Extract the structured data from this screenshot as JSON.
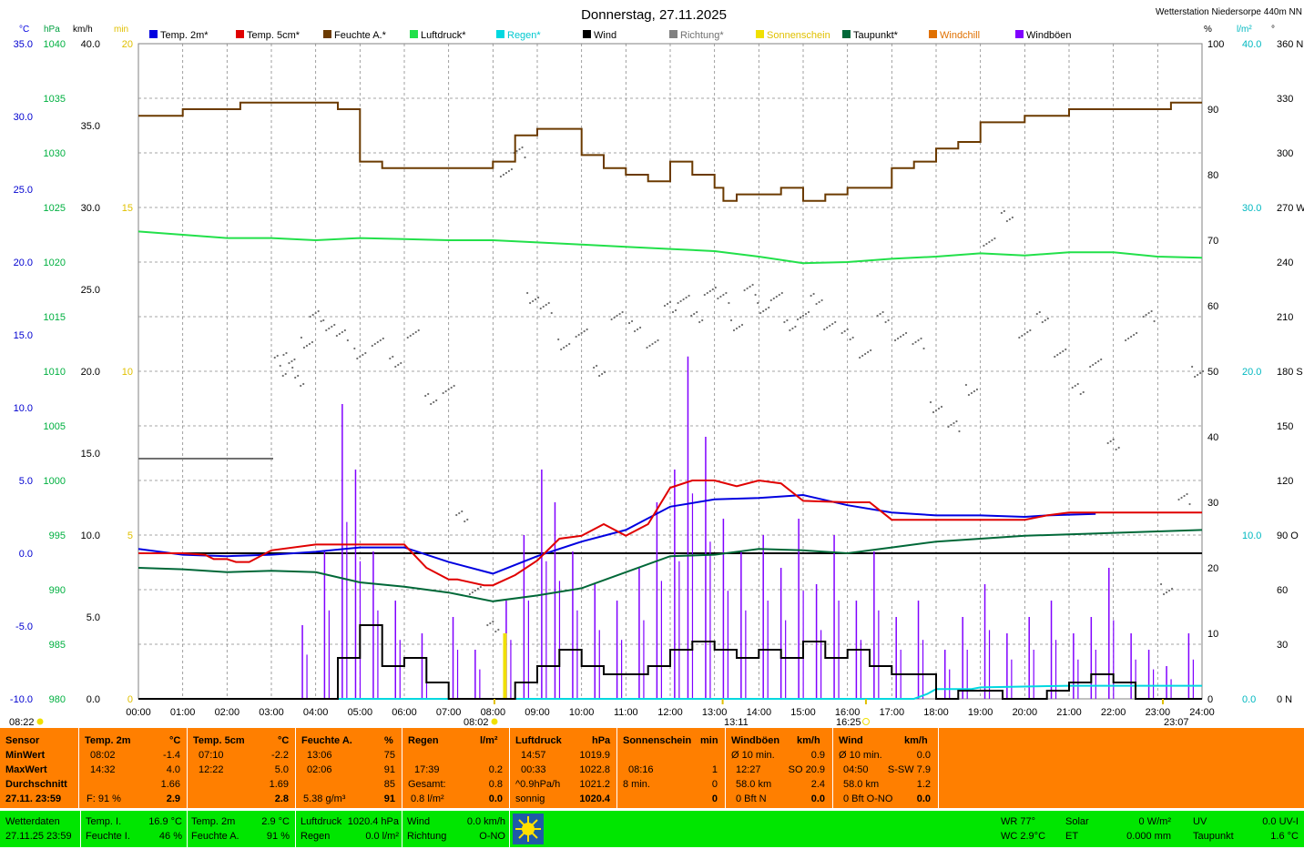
{
  "header": {
    "title": "Donnerstag, 27.11.2025",
    "station": "Wetterstation Niedersorpe 440m NN"
  },
  "axis_units": {
    "c": "°C",
    "hpa": "hPa",
    "kmh": "km/h",
    "min": "min",
    "pct": "%",
    "lm2": "l/m²",
    "deg": "°"
  },
  "legend": [
    {
      "label": "Temp. 2m*",
      "color": "#0000e0"
    },
    {
      "label": "Temp. 5cm*",
      "color": "#e00000"
    },
    {
      "label": "Feuchte A.*",
      "color": "#6b3a00"
    },
    {
      "label": "Luftdruck*",
      "color": "#22e04a"
    },
    {
      "label": "Regen*",
      "color": "#00d8e0"
    },
    {
      "label": "Wind",
      "color": "#000000"
    },
    {
      "label": "Richtung*",
      "color": "#808080"
    },
    {
      "label": "Sonnenschein",
      "color": "#f0e000"
    },
    {
      "label": "Taupunkt*",
      "color": "#006838"
    },
    {
      "label": "Windchill",
      "color": "#e07000"
    },
    {
      "label": "Windböen",
      "color": "#8000ff"
    }
  ],
  "chart_data": {
    "type": "line",
    "x": [
      "00:00",
      "01:00",
      "02:00",
      "03:00",
      "04:00",
      "05:00",
      "06:00",
      "07:00",
      "08:00",
      "09:00",
      "10:00",
      "11:00",
      "12:00",
      "13:00",
      "14:00",
      "15:00",
      "16:00",
      "17:00",
      "18:00",
      "19:00",
      "20:00",
      "21:00",
      "22:00",
      "23:00",
      "24:00"
    ],
    "axes": {
      "temp_c": {
        "ticks": [
          "35.0",
          "30.0",
          "25.0",
          "20.0",
          "15.0",
          "10.0",
          "5.0",
          "0.0",
          "-5.0",
          "-10.0"
        ],
        "range": [
          -10,
          35
        ]
      },
      "pressure_hpa": {
        "ticks": [
          "1040",
          "1035",
          "1030",
          "1025",
          "1020",
          "1015",
          "1010",
          "1005",
          "1000",
          "995",
          "990",
          "985",
          "980"
        ],
        "range": [
          980,
          1040
        ]
      },
      "wind_kmh": {
        "ticks": [
          "40.0",
          "35.0",
          "30.0",
          "25.0",
          "20.0",
          "15.0",
          "10.0",
          "5.0",
          "0.0"
        ],
        "range": [
          0,
          40
        ]
      },
      "sun_min": {
        "ticks": [
          "20",
          "15",
          "10",
          "5",
          "0"
        ],
        "range": [
          0,
          20
        ]
      },
      "humidity_pct": {
        "ticks": [
          "100",
          "90",
          "80",
          "70",
          "60",
          "50",
          "40",
          "30",
          "20",
          "10",
          "0"
        ],
        "range": [
          0,
          100
        ]
      },
      "rain_lm2": {
        "ticks": [
          "40.0",
          "30.0",
          "20.0",
          "10.0",
          "0.0"
        ],
        "range": [
          0,
          40
        ]
      },
      "direction_deg": {
        "ticks": [
          "360 N",
          "330",
          "300",
          "270 W",
          "240",
          "210",
          "180 S",
          "150",
          "120",
          "90 O",
          "60",
          "30",
          "0 N"
        ],
        "range": [
          0,
          360
        ]
      }
    },
    "series": [
      {
        "name": "Temp. 2m*",
        "axis": "temp_c",
        "color": "#0000e0",
        "x": [
          0,
          1,
          2,
          3,
          4,
          5,
          6,
          7,
          8,
          9,
          10,
          11,
          12,
          13,
          14,
          15,
          16,
          17,
          18,
          19,
          20,
          20.5,
          21.6
        ],
        "values": [
          0.3,
          -0.1,
          -0.2,
          -0.1,
          0.1,
          0.4,
          0.4,
          -0.6,
          -1.4,
          -0.2,
          0.8,
          1.6,
          3.2,
          3.7,
          3.8,
          4.0,
          3.3,
          2.8,
          2.6,
          2.6,
          2.5,
          2.6,
          2.7
        ]
      },
      {
        "name": "Temp. 5cm*",
        "axis": "temp_c",
        "color": "#e00000",
        "x": [
          0,
          1,
          1.5,
          1.7,
          2,
          2.2,
          2.5,
          3,
          4,
          5,
          6,
          6.5,
          7,
          7.2,
          7.8,
          8,
          8.5,
          9,
          9.5,
          10,
          10.5,
          11,
          11.5,
          12,
          12.5,
          13,
          13.5,
          14,
          14.5,
          15,
          16,
          16.5,
          17,
          18,
          19,
          20,
          20.5,
          21,
          22,
          24
        ],
        "values": [
          0.0,
          0.0,
          -0.1,
          -0.4,
          -0.4,
          -0.6,
          -0.6,
          0.2,
          0.6,
          0.6,
          0.6,
          -1.0,
          -1.8,
          -1.8,
          -2.2,
          -2.2,
          -1.5,
          -0.5,
          1.0,
          1.2,
          2.0,
          1.2,
          2.0,
          4.5,
          5.0,
          5.0,
          4.6,
          5.0,
          4.8,
          3.6,
          3.5,
          3.5,
          2.3,
          2.3,
          2.3,
          2.3,
          2.6,
          2.8,
          2.8,
          2.8
        ]
      },
      {
        "name": "Feuchte A.*",
        "axis": "humidity_pct",
        "color": "#6b3a00",
        "x": [
          0,
          0.5,
          1,
          2,
          2.3,
          3,
          4,
          4.5,
          5,
          5.5,
          6,
          6.5,
          7,
          7.5,
          8,
          8.5,
          9,
          9.5,
          10,
          10.5,
          11,
          11.5,
          12,
          12.5,
          13,
          13.2,
          13.5,
          14,
          14.5,
          15,
          15.5,
          16,
          16.5,
          17,
          17.5,
          18,
          18.5,
          19,
          20,
          20.5,
          21,
          22,
          23,
          23.3,
          24
        ],
        "values": [
          89,
          89,
          90,
          90,
          91,
          91,
          91,
          90,
          82,
          81,
          81,
          81,
          81,
          81,
          82,
          86,
          87,
          87,
          83,
          81,
          80,
          79,
          82,
          80,
          78,
          76,
          77,
          77,
          78,
          76,
          77,
          78,
          78,
          81,
          82,
          84,
          85,
          88,
          89,
          89,
          90,
          90,
          90,
          91,
          91
        ]
      },
      {
        "name": "Luftdruck*",
        "axis": "pressure_hpa",
        "color": "#22e04a",
        "x": [
          0,
          1,
          2,
          3,
          4,
          5,
          6,
          7,
          8,
          9,
          10,
          11,
          12,
          13,
          14,
          15,
          16,
          17,
          18,
          19,
          20,
          21,
          22,
          23,
          24
        ],
        "values": [
          1022.8,
          1022.5,
          1022.2,
          1022.2,
          1022.0,
          1022.2,
          1022.1,
          1022.0,
          1022.0,
          1021.8,
          1021.6,
          1021.4,
          1021.2,
          1021.0,
          1020.5,
          1019.9,
          1020.0,
          1020.3,
          1020.5,
          1020.8,
          1020.6,
          1020.9,
          1020.9,
          1020.5,
          1020.4
        ]
      },
      {
        "name": "Taupunkt*",
        "axis": "temp_c",
        "color": "#006838",
        "x": [
          0,
          1,
          2,
          3,
          4,
          5,
          6,
          7,
          8,
          9,
          10,
          11,
          12,
          13,
          14,
          15,
          16,
          17,
          18,
          19,
          20,
          21,
          22,
          23,
          24
        ],
        "values": [
          -1.0,
          -1.1,
          -1.3,
          -1.2,
          -1.3,
          -2.0,
          -2.3,
          -2.7,
          -3.3,
          -2.9,
          -2.4,
          -1.3,
          -0.2,
          -0.1,
          0.3,
          0.2,
          0.0,
          0.4,
          0.8,
          1.0,
          1.2,
          1.3,
          1.4,
          1.5,
          1.6
        ]
      },
      {
        "name": "Regen*",
        "axis": "rain_lm2",
        "color": "#00d8e0",
        "x": [
          0,
          17.5,
          17.8,
          18,
          18.8,
          19,
          21,
          22,
          23,
          24
        ],
        "values": [
          0,
          0,
          0.3,
          0.6,
          0.6,
          0.7,
          0.8,
          0.8,
          0.8,
          0.8
        ]
      },
      {
        "name": "Wind",
        "axis": "wind_kmh",
        "color": "#000000",
        "x": [
          0,
          4.0,
          4.5,
          5.0,
          5.5,
          6.0,
          6.5,
          7.0,
          7.5,
          8.0,
          8.5,
          9.0,
          9.5,
          10,
          10.5,
          11,
          11.5,
          12,
          12.5,
          13,
          13.5,
          14,
          14.5,
          15,
          15.5,
          16,
          16.5,
          17,
          17.5,
          18,
          18.5,
          19,
          19.5,
          20,
          20.5,
          21,
          21.5,
          22,
          22.5,
          23,
          24
        ],
        "values": [
          0,
          0,
          2.5,
          4.5,
          2.0,
          2.5,
          1.0,
          0,
          0,
          0,
          1.0,
          2.0,
          3.0,
          2.0,
          1.5,
          1.5,
          2.0,
          3.0,
          3.5,
          3.0,
          2.5,
          3.0,
          2.5,
          3.5,
          2.5,
          3.0,
          2.0,
          1.5,
          1.5,
          0,
          0.5,
          0.5,
          0,
          0,
          0.5,
          1.0,
          1.5,
          1.0,
          0,
          0,
          0
        ]
      }
    ],
    "windboeen_peaks": {
      "axis": "wind_kmh",
      "x": [
        3.7,
        4.2,
        4.6,
        4.9,
        5.3,
        5.8,
        6.4,
        7.1,
        7.6,
        8.3,
        8.7,
        9.1,
        9.4,
        9.8,
        10.3,
        10.8,
        11.3,
        11.7,
        12.1,
        12.4,
        12.8,
        13.2,
        13.6,
        14.1,
        14.5,
        14.9,
        15.3,
        15.7,
        16.2,
        16.6,
        17.1,
        17.6,
        18.2,
        18.6,
        19.1,
        19.6,
        20.1,
        20.6,
        21.1,
        21.5,
        21.9,
        22.4,
        22.8,
        23.2,
        23.7
      ],
      "values": [
        4.5,
        9,
        18,
        14,
        9,
        6,
        4,
        5,
        3,
        6,
        10,
        14,
        12,
        9,
        7,
        6,
        8,
        12,
        14,
        20.9,
        16,
        11,
        9,
        10,
        8,
        11,
        7,
        10,
        6,
        9,
        5,
        6,
        3,
        5,
        7,
        4,
        5,
        6,
        4,
        5,
        8,
        4,
        3,
        2,
        4
      ]
    },
    "richtung_points": {
      "axis": "direction_deg",
      "x": [
        3.2,
        3.4,
        3.6,
        3.8,
        4.0,
        4.3,
        4.6,
        5.0,
        5.4,
        5.8,
        6.2,
        6.6,
        7.0,
        7.3,
        7.6,
        8.0,
        8.3,
        8.6,
        8.9,
        9.2,
        9.6,
        10.0,
        10.4,
        10.8,
        11.2,
        11.6,
        12.0,
        12.3,
        12.6,
        12.9,
        13.2,
        13.5,
        13.8,
        14.1,
        14.4,
        14.7,
        15.0,
        15.3,
        15.6,
        16.0,
        16.4,
        16.8,
        17.2,
        17.6,
        18.0,
        18.4,
        18.8,
        19.2,
        19.6,
        20.0,
        20.4,
        20.8,
        21.2,
        21.6,
        22.0,
        22.4,
        22.8,
        23.2,
        23.6,
        23.9
      ],
      "values": [
        180,
        185,
        175,
        195,
        210,
        205,
        200,
        190,
        195,
        185,
        200,
        165,
        170,
        100,
        60,
        40,
        290,
        300,
        220,
        215,
        195,
        200,
        180,
        210,
        205,
        195,
        215,
        220,
        210,
        225,
        220,
        205,
        225,
        215,
        220,
        205,
        210,
        220,
        205,
        200,
        190,
        210,
        200,
        195,
        160,
        150,
        170,
        250,
        265,
        200,
        210,
        190,
        170,
        185,
        140,
        200,
        210,
        60,
        110,
        180
      ]
    },
    "sun_bar": {
      "axis": "sun_min",
      "x": 8.27,
      "value": 1
    },
    "sun_events": {
      "sunrise": "08:22",
      "sunrise_mark": "08:02",
      "noon": "13:11",
      "sunset": "16:25",
      "moon": "23:07"
    },
    "grid": true
  },
  "table": {
    "sensor": {
      "title": "Sensor",
      "rows": [
        "MinWert",
        "MaxWert",
        "Durchschnitt"
      ],
      "date": "27.11. 23:59"
    },
    "temp2m": {
      "title": "Temp. 2m",
      "unit": "°C",
      "min_time": "08:02",
      "min": "-1.4",
      "max_time": "14:32",
      "max": "4.0",
      "avg": "1.66",
      "extra": "F: 91 %",
      "current": "2.9"
    },
    "temp5cm": {
      "title": "Temp. 5cm",
      "unit": "°C",
      "min_time": "07:10",
      "min": "-2.2",
      "max_time": "12:22",
      "max": "5.0",
      "avg": "1.69",
      "current": "2.8"
    },
    "feuchte": {
      "title": "Feuchte A.",
      "unit": "%",
      "min_time": "13:06",
      "min": "75",
      "max_time": "02:06",
      "max": "91",
      "avg": "85",
      "extra": "5.38 g/m³",
      "current": "91"
    },
    "regen": {
      "title": "Regen",
      "unit": "l/m²",
      "row2_time": "17:39",
      "row2": "0.2",
      "gesamt_label": "Gesamt:",
      "gesamt": "0.8",
      "extra": "0.8 l/m²",
      "current": "0.0"
    },
    "luftdruck": {
      "title": "Luftdruck",
      "unit": "hPa",
      "min_time": "14:57",
      "min": "1019.9",
      "max_time": "00:33",
      "max": "1022.8",
      "avg_label": "^0.9hPa/h",
      "avg": "1021.2",
      "extra": "sonnig",
      "current": "1020.4"
    },
    "sonne": {
      "title": "Sonnenschein",
      "unit": "min",
      "max_time": "08:16",
      "max": "1",
      "avg_label": "8 min.",
      "avg": "0",
      "current": "0"
    },
    "windboeen": {
      "title": "Windböen",
      "unit": "km/h",
      "min_label": "Ø 10 min.",
      "min": "0.9",
      "max_time": "12:27",
      "max": "SO 20.9",
      "avg_label": "58.0 km",
      "avg": "2.4",
      "extra": "0 Bft N",
      "current": "0.0"
    },
    "wind": {
      "title": "Wind",
      "unit": "km/h",
      "min_label": "Ø 10 min.",
      "min": "0.0",
      "max_time": "04:50",
      "max": "S-SW 7.9",
      "avg_label": "58.0 km",
      "avg": "1.2",
      "extra": "0 Bft O-NO",
      "current": "0.0"
    }
  },
  "status": {
    "wetterdaten": "Wetterdaten",
    "datetime": "27.11.25 23:59",
    "temp_i_label": "Temp. I.",
    "temp_i": "16.9 °C",
    "feuchte_i_label": "Feuchte I.",
    "feuchte_i": "46 %",
    "temp2m_label": "Temp. 2m",
    "temp2m": "2.9 °C",
    "feuchte_a_label": "Feuchte A.",
    "feuchte_a": "91 %",
    "luftdruck_label": "Luftdruck",
    "luftdruck": "1020.4 hPa",
    "regen_label": "Regen",
    "regen": "0.0 l/m²",
    "wind_label": "Wind",
    "wind": "0.0 km/h",
    "richtung_label": "Richtung",
    "richtung": "O-NO",
    "wr": "WR 77°",
    "wc": "WC 2.9°C",
    "solar_label": "Solar",
    "solar": "0 W/m²",
    "et_label": "ET",
    "et": "0.000 mm",
    "uv_label": "UV",
    "uv": "0.0 UV-I",
    "taupunkt_label": "Taupunkt",
    "taupunkt": "1.6 °C"
  }
}
